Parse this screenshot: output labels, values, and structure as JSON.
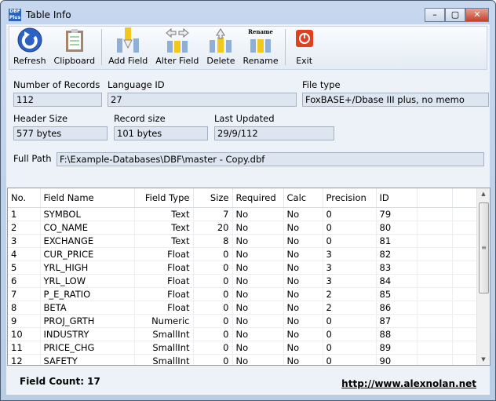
{
  "window": {
    "title": "Table Info",
    "app_icon_text": "DBF Plus",
    "minimize": "–",
    "maximize": "▢",
    "close": "✕"
  },
  "toolbar": [
    {
      "label": "Refresh",
      "icon": "refresh-icon"
    },
    {
      "label": "Clipboard",
      "icon": "clipboard-icon"
    },
    {
      "label": "Add Field",
      "icon": "add-field-icon"
    },
    {
      "label": "Alter Field",
      "icon": "alter-field-icon"
    },
    {
      "label": "Delete",
      "icon": "delete-icon"
    },
    {
      "label": "Rename",
      "icon": "rename-icon",
      "icon_text": "Rename"
    },
    {
      "label": "Exit",
      "icon": "exit-icon"
    }
  ],
  "info": {
    "records_label": "Number of Records",
    "records": "112",
    "language_label": "Language ID",
    "language": "27",
    "filetype_label": "File type",
    "filetype": "FoxBASE+/Dbase III plus, no memo",
    "header_label": "Header Size",
    "header": "577 bytes",
    "recsize_label": "Record size",
    "recsize": "101 bytes",
    "updated_label": "Last Updated",
    "updated": "29/9/112",
    "path_label": "Full Path",
    "path": "F:\\Example-Databases\\DBF\\master - Copy.dbf"
  },
  "table": {
    "columns": [
      "No.",
      "Field Name",
      "Field Type",
      "Size",
      "Required",
      "Calc",
      "Precision",
      "ID"
    ],
    "rows": [
      [
        "1",
        "SYMBOL",
        "Text",
        "7",
        "No",
        "No",
        "0",
        "79"
      ],
      [
        "2",
        "CO_NAME",
        "Text",
        "20",
        "No",
        "No",
        "0",
        "80"
      ],
      [
        "3",
        "EXCHANGE",
        "Text",
        "8",
        "No",
        "No",
        "0",
        "81"
      ],
      [
        "4",
        "CUR_PRICE",
        "Float",
        "0",
        "No",
        "No",
        "3",
        "82"
      ],
      [
        "5",
        "YRL_HIGH",
        "Float",
        "0",
        "No",
        "No",
        "3",
        "83"
      ],
      [
        "6",
        "YRL_LOW",
        "Float",
        "0",
        "No",
        "No",
        "3",
        "84"
      ],
      [
        "7",
        "P_E_RATIO",
        "Float",
        "0",
        "No",
        "No",
        "2",
        "85"
      ],
      [
        "8",
        "BETA",
        "Float",
        "0",
        "No",
        "No",
        "2",
        "86"
      ],
      [
        "9",
        "PROJ_GRTH",
        "Numeric",
        "0",
        "No",
        "No",
        "0",
        "87"
      ],
      [
        "10",
        "INDUSTRY",
        "SmallInt",
        "0",
        "No",
        "No",
        "0",
        "88"
      ],
      [
        "11",
        "PRICE_CHG",
        "SmallInt",
        "0",
        "No",
        "No",
        "0",
        "89"
      ],
      [
        "12",
        "SAFETY",
        "SmallInt",
        "0",
        "No",
        "No",
        "0",
        "90"
      ]
    ]
  },
  "footer": {
    "field_count": "Field Count: 17",
    "link": "http://www.alexnolan.net"
  }
}
